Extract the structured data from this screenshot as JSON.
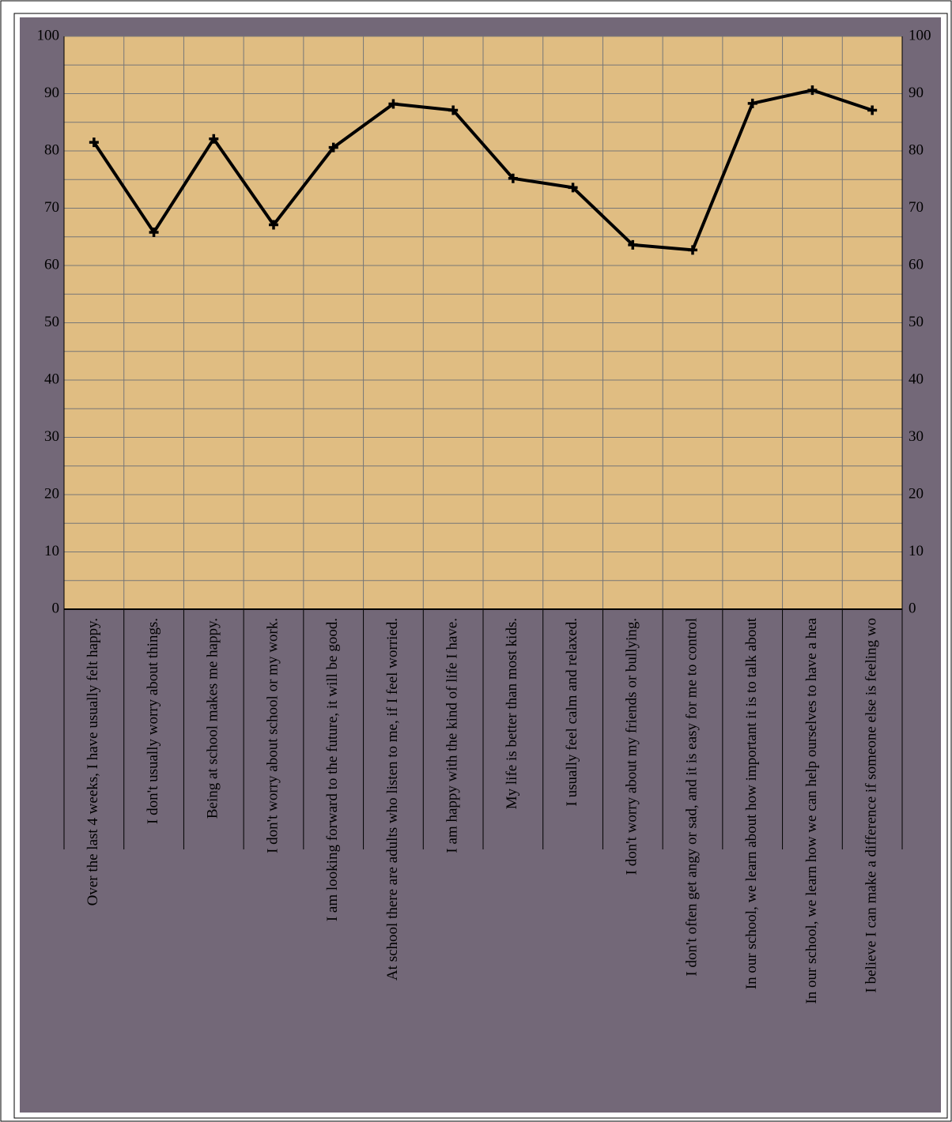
{
  "chart_data": {
    "type": "line",
    "categories": [
      "Over the last 4 weeks, I have usually felt happy.",
      "I don't usually worry about things.",
      "Being at school makes me happy.",
      "I don't worry about school or my work.",
      "I am looking forward to the future, it will be good.",
      "At school there are adults who listen to me, if I feel worried.",
      "I am happy with the kind of life I have.",
      "My life is better than most kids.",
      "I usually feel calm and relaxed.",
      "I don't worry about my friends or bullying.",
      "I don't often get angy or sad, and it is easy for me to control",
      "In our school, we learn about how important it is to talk about",
      "In our school, we learn how we can help ourselves to have a hea",
      "I believe I can make a difference if someone else is feeling wo"
    ],
    "values": [
      81.5,
      65.8,
      82.1,
      67.1,
      80.6,
      88.2,
      87.1,
      75.2,
      73.6,
      63.6,
      62.7,
      88.3,
      90.6,
      87.1
    ],
    "color": "#000000",
    "ylim": [
      0,
      100
    ],
    "yticks": [
      0,
      10,
      20,
      30,
      40,
      50,
      60,
      70,
      80,
      90,
      100
    ],
    "minor_yticks": [
      5,
      15,
      25,
      35,
      45,
      55,
      65,
      75,
      85,
      95
    ],
    "grid": true,
    "right_axis_labels": true
  }
}
